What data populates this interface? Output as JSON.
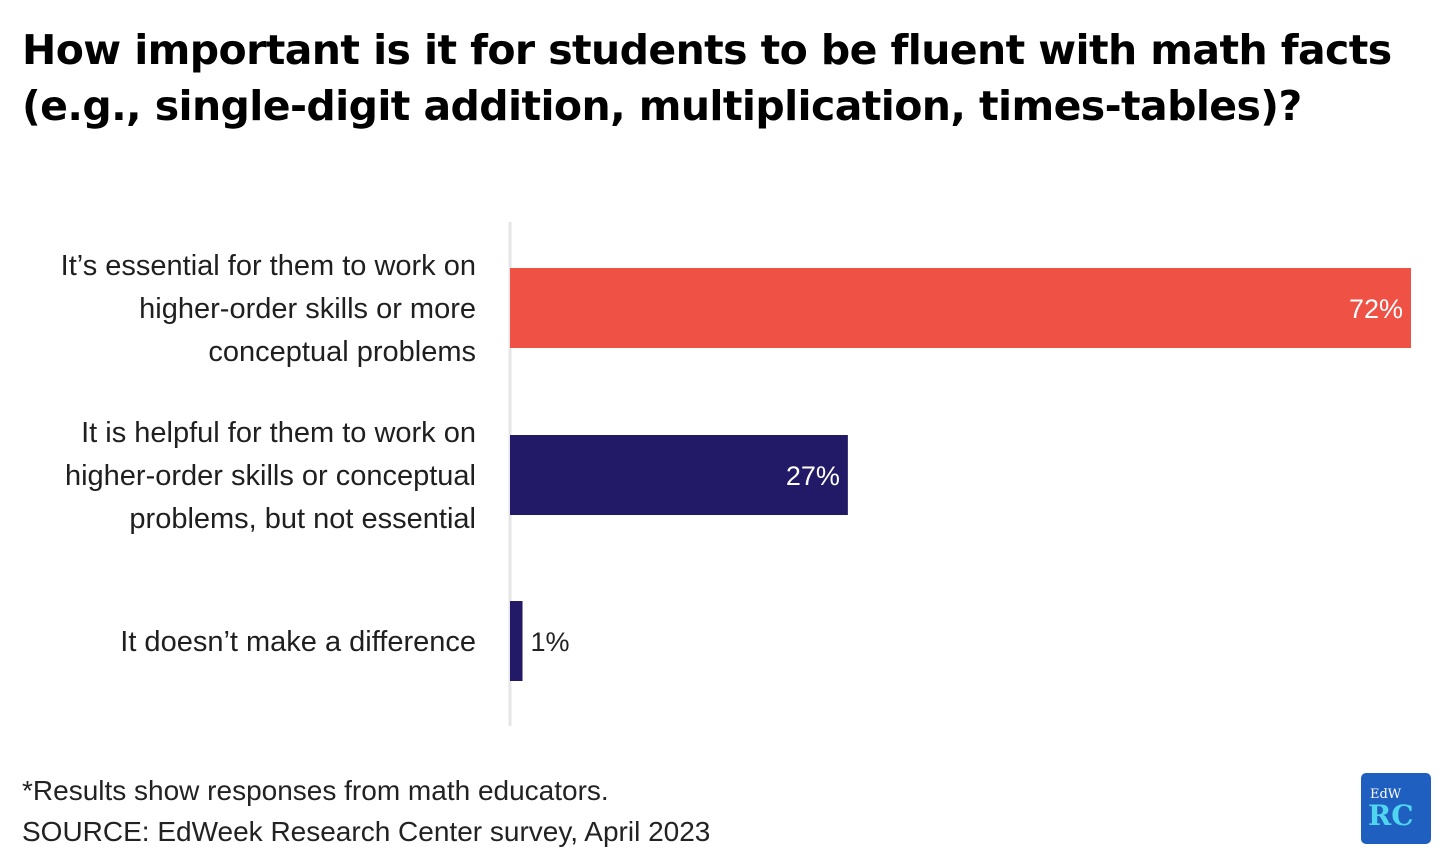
{
  "title": "How important is it for students to be fluent with math facts (e.g., single-digit addition, multiplication, times-tables)?",
  "footer": {
    "note": "*Results show responses from math educators.",
    "source": "SOURCE: EdWeek Research Center survey, April 2023"
  },
  "logo": {
    "top": "EdW",
    "bottom": "RC",
    "color": "#1f5fbf",
    "accent": "#4fd6ef"
  },
  "chart_data": {
    "type": "bar",
    "orientation": "horizontal",
    "title": "How important is it for students to be fluent with math facts (e.g., single-digit addition, multiplication, times-tables)?",
    "categories": [
      [
        "It’s essential for them to work on",
        "higher-order skills or more",
        "conceptual problems"
      ],
      [
        "It is helpful for them to work on",
        "higher-order skills or conceptual",
        "problems, but not essential"
      ],
      [
        "It doesn’t make a difference"
      ]
    ],
    "values": [
      72,
      27,
      1
    ],
    "value_labels": [
      "72%",
      "27%",
      "1%"
    ],
    "xlim": [
      0,
      72
    ],
    "colors": [
      "#ef5145",
      "#221a66",
      "#221a66"
    ],
    "grid": false,
    "legend": "none"
  }
}
